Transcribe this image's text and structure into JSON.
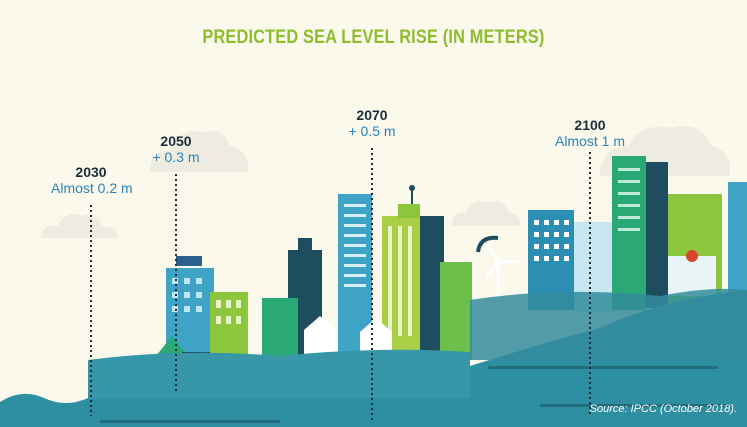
{
  "title": "PREDICTED SEA LEVEL RISE (IN METERS)",
  "markers": [
    {
      "year": "2030",
      "rise": "Almost 0.2 m"
    },
    {
      "year": "2050",
      "rise": "+ 0.3 m"
    },
    {
      "year": "2070",
      "rise": "+ 0.5 m"
    },
    {
      "year": "2100",
      "rise": "Almost 1 m"
    }
  ],
  "source": "Source: IPCC (October 2018).",
  "colors": {
    "background": "#fbf8ec",
    "title": "#8cbd2e",
    "year": "#1e2d3a",
    "rise": "#2a83b6",
    "water": "#2e8fa3",
    "cloud": "#eeece0"
  }
}
